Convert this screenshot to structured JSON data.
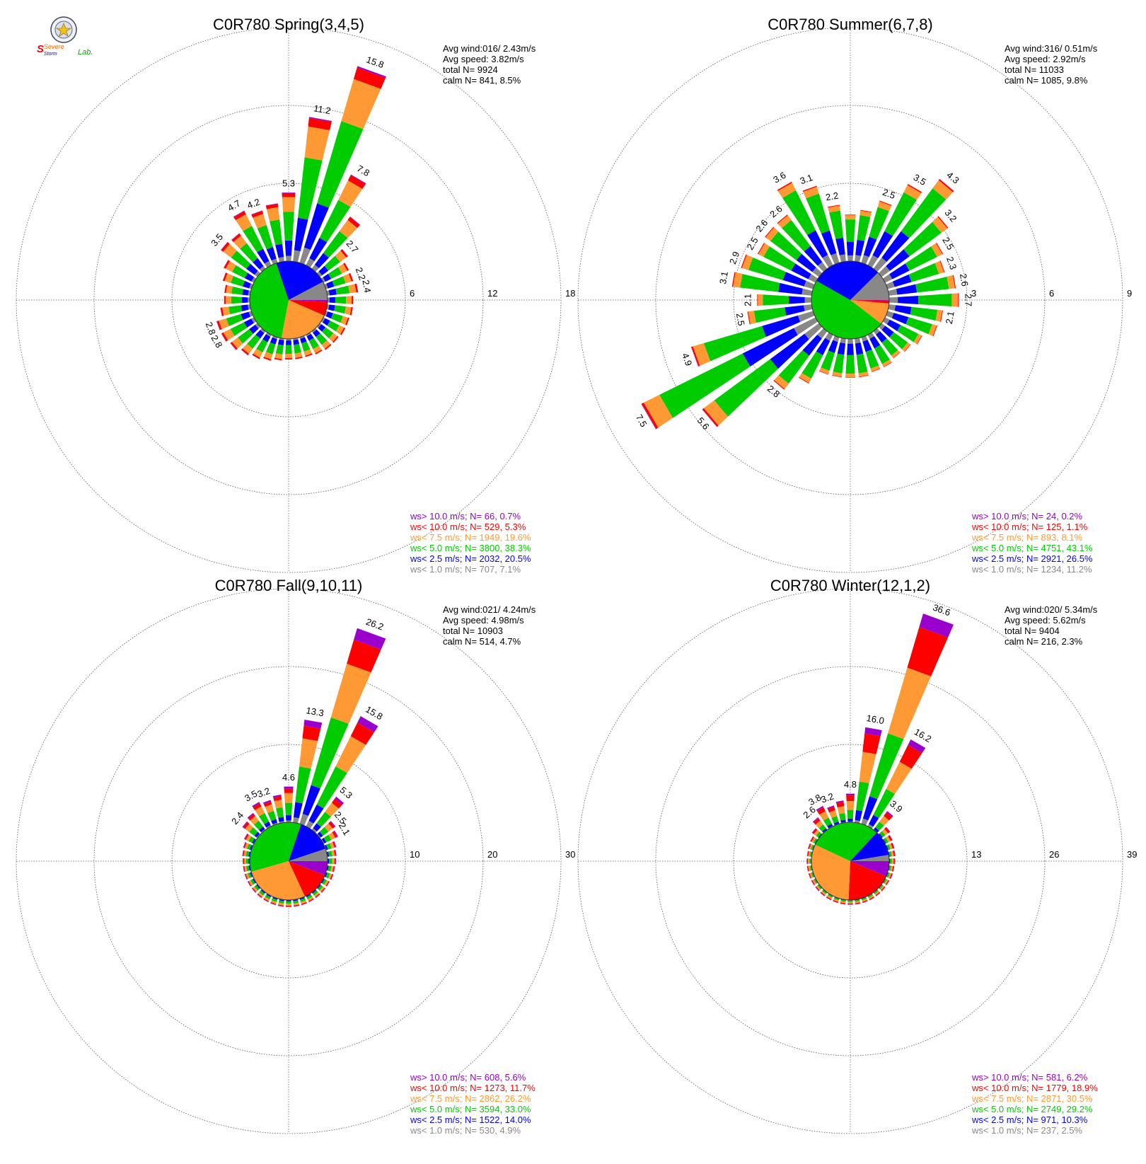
{
  "logo": {
    "text_top": "Severe",
    "text_mid": "Storm",
    "text_lab": "Lab."
  },
  "colors": {
    "purple": "#9900cc",
    "red": "#ff0000",
    "orange": "#ff9933",
    "green": "#00cc00",
    "blue": "#0000ff",
    "gray": "#888888",
    "grid": "#555555"
  },
  "chart_data": [
    {
      "type": "windrose",
      "title": "C0R780 Spring(3,4,5)",
      "stats": [
        "Avg wind:016/ 2.43m/s",
        "Avg speed: 3.82m/s",
        "total N=       9924",
        "calm N=   841,   8.5%"
      ],
      "rings": [
        6,
        12,
        18
      ],
      "legend": [
        {
          "text": "ws> 10.0 m/s; N=    66,   0.7%",
          "color": "purple"
        },
        {
          "text": "ws< 10.0 m/s; N=   529,   5.3%",
          "color": "red"
        },
        {
          "text": "ws<  7.5 m/s; N=  1949,  19.6%",
          "color": "orange"
        },
        {
          "text": "ws<  5.0 m/s; N=  3800,  38.3%",
          "color": "green"
        },
        {
          "text": "ws<  2.5 m/s; N=  2032,  20.5%",
          "color": "blue"
        },
        {
          "text": "ws<  1.0 m/s; N=   707,   7.1%",
          "color": "gray"
        }
      ],
      "pie": [
        0.7,
        5.3,
        19.6,
        38.3,
        20.5,
        7.1
      ],
      "sectors": [
        {
          "dir": 0,
          "value": 5.3,
          "label": "5.3"
        },
        {
          "dir": 10,
          "value": 11.2,
          "label": "11.2"
        },
        {
          "dir": 20,
          "value": 15.8,
          "label": "15.8"
        },
        {
          "dir": 30,
          "value": 7.8,
          "label": "7.8"
        },
        {
          "dir": 40,
          "value": 5.0
        },
        {
          "dir": 50,
          "value": 2.7,
          "label": "2.7"
        },
        {
          "dir": 60,
          "value": 2.2
        },
        {
          "dir": 70,
          "value": 2.2,
          "label": "2.2"
        },
        {
          "dir": 80,
          "value": 2.4,
          "label": "2.4"
        },
        {
          "dir": 90,
          "value": 2.0
        },
        {
          "dir": 100,
          "value": 2.0
        },
        {
          "dir": 110,
          "value": 1.9
        },
        {
          "dir": 120,
          "value": 1.9
        },
        {
          "dir": 130,
          "value": 1.8
        },
        {
          "dir": 140,
          "value": 1.8
        },
        {
          "dir": 150,
          "value": 1.7
        },
        {
          "dir": 160,
          "value": 1.6
        },
        {
          "dir": 170,
          "value": 1.6
        },
        {
          "dir": 180,
          "value": 1.6
        },
        {
          "dir": 190,
          "value": 1.7
        },
        {
          "dir": 200,
          "value": 1.9
        },
        {
          "dir": 210,
          "value": 2.1
        },
        {
          "dir": 220,
          "value": 2.3
        },
        {
          "dir": 230,
          "value": 2.6
        },
        {
          "dir": 240,
          "value": 2.8,
          "label": "2.8"
        },
        {
          "dir": 250,
          "value": 2.8,
          "label": "2.8"
        },
        {
          "dir": 260,
          "value": 2.3
        },
        {
          "dir": 270,
          "value": 2.0
        },
        {
          "dir": 280,
          "value": 2.0
        },
        {
          "dir": 290,
          "value": 2.3
        },
        {
          "dir": 300,
          "value": 2.6
        },
        {
          "dir": 310,
          "value": 3.5,
          "label": "3.5"
        },
        {
          "dir": 320,
          "value": 3.4
        },
        {
          "dir": 330,
          "value": 4.7,
          "label": "4.7"
        },
        {
          "dir": 340,
          "value": 4.2,
          "label": "4.2"
        },
        {
          "dir": 350,
          "value": 4.5
        }
      ]
    },
    {
      "type": "windrose",
      "title": "C0R780 Summer(6,7,8)",
      "stats": [
        "Avg wind:316/ 0.51m/s",
        "Avg speed: 2.92m/s",
        "total N=       11033",
        "calm N=  1085,   9.8%"
      ],
      "rings": [
        3,
        6,
        9
      ],
      "legend": [
        {
          "text": "ws> 10.0 m/s; N=    24,   0.2%",
          "color": "purple"
        },
        {
          "text": "ws< 10.0 m/s; N=   125,   1.1%",
          "color": "red"
        },
        {
          "text": "ws<  7.5 m/s; N=   893,   8.1%",
          "color": "orange"
        },
        {
          "text": "ws<  5.0 m/s; N=  4751,  43.1%",
          "color": "green"
        },
        {
          "text": "ws<  2.5 m/s; N=  2921,  26.5%",
          "color": "blue"
        },
        {
          "text": "ws<  1.0 m/s; N=  1234,  11.2%",
          "color": "gray"
        }
      ],
      "pie": [
        0.2,
        1.1,
        8.1,
        43.1,
        26.5,
        11.2
      ],
      "sectors": [
        {
          "dir": 0,
          "value": 1.8
        },
        {
          "dir": 10,
          "value": 2.0
        },
        {
          "dir": 20,
          "value": 2.5,
          "label": "2.5"
        },
        {
          "dir": 30,
          "value": 3.5,
          "label": "3.5"
        },
        {
          "dir": 40,
          "value": 4.3,
          "label": "4.3"
        },
        {
          "dir": 50,
          "value": 3.2,
          "label": "3.2"
        },
        {
          "dir": 60,
          "value": 2.5,
          "label": "2.5"
        },
        {
          "dir": 70,
          "value": 2.3,
          "label": "2.3"
        },
        {
          "dir": 80,
          "value": 2.6,
          "label": "2.6"
        },
        {
          "dir": 90,
          "value": 2.7,
          "label": "2.7"
        },
        {
          "dir": 100,
          "value": 2.1,
          "label": "2.1"
        },
        {
          "dir": 110,
          "value": 2.0
        },
        {
          "dir": 120,
          "value": 1.6
        },
        {
          "dir": 130,
          "value": 1.4
        },
        {
          "dir": 140,
          "value": 1.3
        },
        {
          "dir": 150,
          "value": 1.4
        },
        {
          "dir": 160,
          "value": 1.4
        },
        {
          "dir": 170,
          "value": 1.5
        },
        {
          "dir": 180,
          "value": 1.5
        },
        {
          "dir": 190,
          "value": 1.5
        },
        {
          "dir": 200,
          "value": 1.5
        },
        {
          "dir": 210,
          "value": 2.1
        },
        {
          "dir": 220,
          "value": 2.8,
          "label": "2.8"
        },
        {
          "dir": 230,
          "value": 5.6,
          "label": "5.6"
        },
        {
          "dir": 240,
          "value": 7.5,
          "label": "7.5"
        },
        {
          "dir": 250,
          "value": 4.9,
          "label": "4.9"
        },
        {
          "dir": 260,
          "value": 2.5,
          "label": "2.5"
        },
        {
          "dir": 270,
          "value": 2.1,
          "label": "2.1"
        },
        {
          "dir": 280,
          "value": 3.1,
          "label": "3.1"
        },
        {
          "dir": 290,
          "value": 2.9,
          "label": "2.9"
        },
        {
          "dir": 300,
          "value": 2.5,
          "label": "2.5"
        },
        {
          "dir": 310,
          "value": 2.6,
          "label": "2.6"
        },
        {
          "dir": 320,
          "value": 2.6,
          "label": "2.6"
        },
        {
          "dir": 330,
          "value": 3.6,
          "label": "3.6"
        },
        {
          "dir": 340,
          "value": 3.1,
          "label": "3.1"
        },
        {
          "dir": 350,
          "value": 2.2,
          "label": "2.2"
        }
      ]
    },
    {
      "type": "windrose",
      "title": "C0R780 Fall(9,10,11)",
      "stats": [
        "Avg wind:021/ 4.24m/s",
        "Avg speed: 4.98m/s",
        "total N=       10903",
        "calm N=   514,   4.7%"
      ],
      "rings": [
        10,
        20,
        30
      ],
      "legend": [
        {
          "text": "ws> 10.0 m/s; N=   608,   5.6%",
          "color": "purple"
        },
        {
          "text": "ws< 10.0 m/s; N=  1273,  11.7%",
          "color": "red"
        },
        {
          "text": "ws<  7.5 m/s; N=  2862,  26.2%",
          "color": "orange"
        },
        {
          "text": "ws<  5.0 m/s; N=  3594,  33.0%",
          "color": "green"
        },
        {
          "text": "ws<  2.5 m/s; N=  1522,  14.0%",
          "color": "blue"
        },
        {
          "text": "ws<  1.0 m/s; N=   530,   4.9%",
          "color": "gray"
        }
      ],
      "pie": [
        5.6,
        11.7,
        26.2,
        33.0,
        14.0,
        4.9
      ],
      "sectors": [
        {
          "dir": 0,
          "value": 4.6,
          "label": "4.6"
        },
        {
          "dir": 10,
          "value": 13.3,
          "label": "13.3"
        },
        {
          "dir": 20,
          "value": 26.2,
          "label": "26.2"
        },
        {
          "dir": 30,
          "value": 15.8,
          "label": "15.8"
        },
        {
          "dir": 40,
          "value": 5.3,
          "label": "5.3"
        },
        {
          "dir": 50,
          "value": 2.5,
          "label": "2.5"
        },
        {
          "dir": 60,
          "value": 2.1,
          "label": "2.1"
        },
        {
          "dir": 70,
          "value": 1.4
        },
        {
          "dir": 80,
          "value": 1.2
        },
        {
          "dir": 90,
          "value": 1.1
        },
        {
          "dir": 100,
          "value": 1.0
        },
        {
          "dir": 110,
          "value": 1.0
        },
        {
          "dir": 120,
          "value": 0.9
        },
        {
          "dir": 130,
          "value": 0.9
        },
        {
          "dir": 140,
          "value": 0.9
        },
        {
          "dir": 150,
          "value": 0.9
        },
        {
          "dir": 160,
          "value": 0.9
        },
        {
          "dir": 170,
          "value": 0.9
        },
        {
          "dir": 180,
          "value": 0.9
        },
        {
          "dir": 190,
          "value": 0.9
        },
        {
          "dir": 200,
          "value": 0.9
        },
        {
          "dir": 210,
          "value": 0.9
        },
        {
          "dir": 220,
          "value": 0.9
        },
        {
          "dir": 230,
          "value": 0.9
        },
        {
          "dir": 240,
          "value": 0.9
        },
        {
          "dir": 250,
          "value": 0.9
        },
        {
          "dir": 260,
          "value": 0.9
        },
        {
          "dir": 270,
          "value": 0.9
        },
        {
          "dir": 280,
          "value": 1.0
        },
        {
          "dir": 290,
          "value": 1.1
        },
        {
          "dir": 300,
          "value": 1.4
        },
        {
          "dir": 310,
          "value": 2.4,
          "label": "2.4"
        },
        {
          "dir": 320,
          "value": 2.7
        },
        {
          "dir": 330,
          "value": 3.5,
          "label": "3.5"
        },
        {
          "dir": 340,
          "value": 3.2,
          "label": "3.2"
        },
        {
          "dir": 350,
          "value": 3.6
        }
      ]
    },
    {
      "type": "windrose",
      "title": "C0R780 Winter(12,1,2)",
      "stats": [
        "Avg wind:020/ 5.34m/s",
        "Avg speed: 5.62m/s",
        "total N=       9404",
        "calm N=   216,   2.3%"
      ],
      "rings": [
        13,
        26,
        39
      ],
      "legend": [
        {
          "text": "ws> 10.0 m/s; N=   581,   6.2%",
          "color": "purple"
        },
        {
          "text": "ws< 10.0 m/s; N=  1779,  18.9%",
          "color": "red"
        },
        {
          "text": "ws<  7.5 m/s; N=  2871,  30.5%",
          "color": "orange"
        },
        {
          "text": "ws<  5.0 m/s; N=  2749,  29.2%",
          "color": "green"
        },
        {
          "text": "ws<  2.5 m/s; N=   971,  10.3%",
          "color": "blue"
        },
        {
          "text": "ws<  1.0 m/s; N=   237,   2.5%",
          "color": "gray"
        }
      ],
      "pie": [
        6.2,
        18.9,
        30.5,
        29.2,
        10.3,
        2.5
      ],
      "sectors": [
        {
          "dir": 0,
          "value": 4.8,
          "label": "4.8"
        },
        {
          "dir": 10,
          "value": 16.0,
          "label": "16.0"
        },
        {
          "dir": 20,
          "value": 36.6,
          "label": "36.6"
        },
        {
          "dir": 30,
          "value": 16.2,
          "label": "16.2"
        },
        {
          "dir": 40,
          "value": 3.9,
          "label": "3.9"
        },
        {
          "dir": 50,
          "value": 1.8
        },
        {
          "dir": 60,
          "value": 1.4
        },
        {
          "dir": 70,
          "value": 1.2
        },
        {
          "dir": 80,
          "value": 1.1
        },
        {
          "dir": 90,
          "value": 1.0
        },
        {
          "dir": 100,
          "value": 0.9
        },
        {
          "dir": 110,
          "value": 0.9
        },
        {
          "dir": 120,
          "value": 0.8
        },
        {
          "dir": 130,
          "value": 0.8
        },
        {
          "dir": 140,
          "value": 0.8
        },
        {
          "dir": 150,
          "value": 0.8
        },
        {
          "dir": 160,
          "value": 0.8
        },
        {
          "dir": 170,
          "value": 0.8
        },
        {
          "dir": 180,
          "value": 0.8
        },
        {
          "dir": 190,
          "value": 0.8
        },
        {
          "dir": 200,
          "value": 0.8
        },
        {
          "dir": 210,
          "value": 0.8
        },
        {
          "dir": 220,
          "value": 0.8
        },
        {
          "dir": 230,
          "value": 0.8
        },
        {
          "dir": 240,
          "value": 0.8
        },
        {
          "dir": 250,
          "value": 0.8
        },
        {
          "dir": 260,
          "value": 0.8
        },
        {
          "dir": 270,
          "value": 0.8
        },
        {
          "dir": 280,
          "value": 0.8
        },
        {
          "dir": 290,
          "value": 0.9
        },
        {
          "dir": 300,
          "value": 1.0
        },
        {
          "dir": 310,
          "value": 1.5
        },
        {
          "dir": 320,
          "value": 2.6,
          "label": "2.6"
        },
        {
          "dir": 330,
          "value": 3.8,
          "label": "3.8"
        },
        {
          "dir": 340,
          "value": 3.2,
          "label": "3.2"
        },
        {
          "dir": 350,
          "value": 3.7
        }
      ]
    }
  ]
}
